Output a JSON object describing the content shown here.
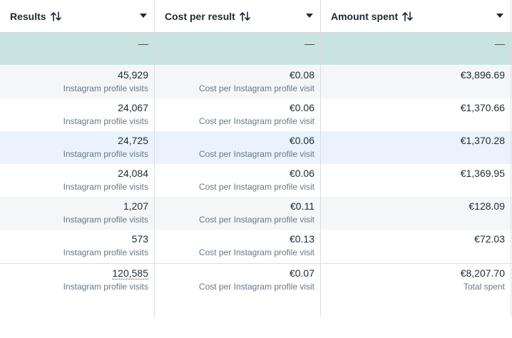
{
  "columns": [
    {
      "label": "Results"
    },
    {
      "label": "Cost per result"
    },
    {
      "label": "Amount spent"
    }
  ],
  "summary": {
    "results": "—",
    "cost": "—",
    "amount": "—"
  },
  "rows": [
    {
      "results": "45,929",
      "results_sub": "Instagram profile visits",
      "cost": "€0.08",
      "cost_sub": "Cost per Instagram profile visit",
      "amount": "€3,896.69"
    },
    {
      "results": "24,067",
      "results_sub": "Instagram profile visits",
      "cost": "€0.06",
      "cost_sub": "Cost per Instagram profile visit",
      "amount": "€1,370.66"
    },
    {
      "results": "24,725",
      "results_sub": "Instagram profile visits",
      "cost": "€0.06",
      "cost_sub": "Cost per Instagram profile visit",
      "amount": "€1,370.28"
    },
    {
      "results": "24,084",
      "results_sub": "Instagram profile visits",
      "cost": "€0.06",
      "cost_sub": "Cost per Instagram profile visit",
      "amount": "€1,369.95"
    },
    {
      "results": "1,207",
      "results_sub": "Instagram profile visits",
      "cost": "€0.11",
      "cost_sub": "Cost per Instagram profile visit",
      "amount": "€128.09"
    },
    {
      "results": "573",
      "results_sub": "Instagram profile visits",
      "cost": "€0.13",
      "cost_sub": "Cost per Instagram profile visit",
      "amount": "€72.03"
    }
  ],
  "totals": {
    "results": "120,585",
    "results_sub": "Instagram profile visits",
    "cost": "€0.07",
    "cost_sub": "Cost per Instagram profile visit",
    "amount": "€8,207.70",
    "amount_sub": "Total spent"
  }
}
